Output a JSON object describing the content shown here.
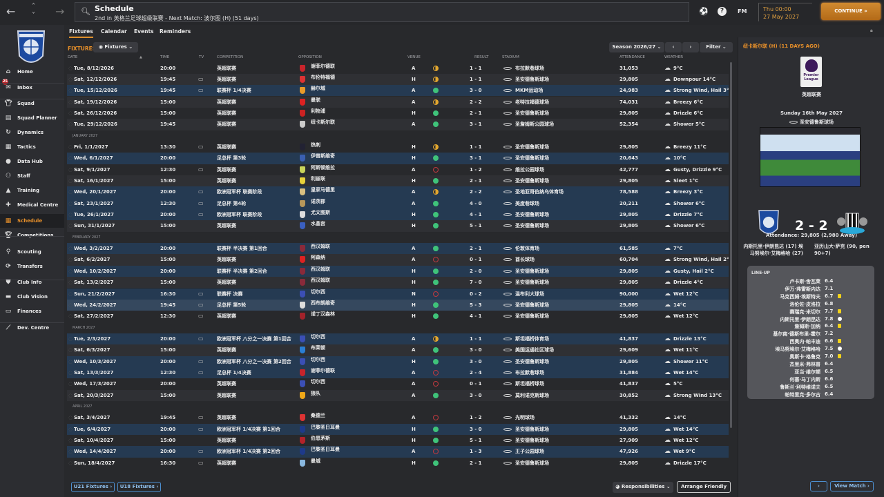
{
  "topbar": {
    "title": "Schedule",
    "subtitle": "2nd in 英格兰足球超级联赛 - Next Match: 波尔图 (H) (51 days)",
    "fm_label": "FM",
    "time": "Thu 00:00",
    "date": "27 May 2027",
    "continue_label": "CONTINUE »"
  },
  "sidebar": {
    "inbox_count": "25",
    "items": [
      {
        "label": "Home",
        "icon": "home-icon"
      },
      {
        "label": "Inbox",
        "icon": "inbox-icon"
      },
      {
        "label": "Squad",
        "icon": "shirt-icon"
      },
      {
        "label": "Squad Planner",
        "icon": "clipboard-icon"
      },
      {
        "label": "Dynamics",
        "icon": "dynamics-icon"
      },
      {
        "label": "Tactics",
        "icon": "tactics-icon"
      },
      {
        "label": "Data Hub",
        "icon": "data-hub-icon"
      },
      {
        "label": "Staff",
        "icon": "staff-icon"
      },
      {
        "label": "Training",
        "icon": "training-icon"
      },
      {
        "label": "Medical Centre",
        "icon": "medical-icon"
      },
      {
        "label": "Schedule",
        "icon": "calendar-icon"
      },
      {
        "label": "Competitions",
        "icon": "trophy-icon"
      },
      {
        "label": "Scouting",
        "icon": "magnifier-icon"
      },
      {
        "label": "Transfers",
        "icon": "transfers-icon"
      },
      {
        "label": "Club Info",
        "icon": "shield-icon"
      },
      {
        "label": "Club Vision",
        "icon": "briefcase-icon"
      },
      {
        "label": "Finances",
        "icon": "money-icon"
      },
      {
        "label": "Dev. Centre",
        "icon": "dev-centre-icon"
      }
    ]
  },
  "tabs": [
    "Fixtures",
    "Calendar",
    "Events",
    "Reminders"
  ],
  "fixtures": {
    "label": "FIXTURES",
    "view_label": "Fixtures",
    "season": "Season 2026/27",
    "filter": "Filter",
    "columns": [
      "DATE",
      "TIME",
      "TV",
      "COMPETITION",
      "OPPOSITION",
      "VENUE",
      "RESULT",
      "STADIUM",
      "ATTENDANCE",
      "WEATHER"
    ],
    "rows": [
      {
        "d": "Tue, 8/12/2026",
        "t": "20:00",
        "tv": false,
        "c": "英超联赛",
        "o": "谢菲尔德联",
        "v": "A",
        "oc": "D",
        "r": "1 - 1",
        "s": "布拉默巷球场",
        "a": "31,053",
        "w": "9°C",
        "bc": "#c8242b"
      },
      {
        "d": "Sat, 12/12/2026",
        "t": "19:45",
        "tv": true,
        "c": "英超联赛",
        "o": "布伦特福德",
        "v": "H",
        "oc": "D",
        "r": "1 - 1",
        "s": "圣安德鲁斯球场",
        "a": "29,805",
        "w": "Downpour 14°C",
        "bc": "#d33"
      },
      {
        "d": "Tue, 15/12/2026",
        "t": "19:45",
        "tv": true,
        "c": "联赛杯 1/4决赛",
        "o": "赫尔城",
        "v": "A",
        "oc": "W",
        "r": "3 - 0",
        "s": "MKM运动场",
        "a": "24,983",
        "w": "Strong Wind, Hail 3°C",
        "hl": 1,
        "bc": "#e89a2a"
      },
      {
        "d": "Sat, 19/12/2026",
        "t": "15:00",
        "tv": false,
        "c": "英超联赛",
        "o": "曼联",
        "v": "A",
        "oc": "D",
        "r": "2 - 2",
        "s": "老特拉福德球场",
        "a": "74,031",
        "w": "Breezy 6°C",
        "bc": "#d22"
      },
      {
        "d": "Sat, 26/12/2026",
        "t": "15:00",
        "tv": false,
        "c": "英超联赛",
        "o": "利物浦",
        "v": "H",
        "oc": "W",
        "r": "2 - 1",
        "s": "圣安德鲁斯球场",
        "a": "29,805",
        "w": "Drizzle 6°C",
        "bc": "#c22"
      },
      {
        "d": "Tue, 29/12/2026",
        "t": "19:45",
        "tv": false,
        "c": "英超联赛",
        "o": "纽卡斯尔联",
        "v": "A",
        "oc": "W",
        "r": "3 - 1",
        "s": "圣詹姆斯公园球场",
        "a": "52,354",
        "w": "Shower 5°C",
        "bc": "#ccc"
      },
      {
        "month": "JANUARY 2027"
      },
      {
        "d": "Fri, 1/1/2027",
        "t": "13:30",
        "tv": true,
        "c": "英超联赛",
        "o": "热刺",
        "v": "H",
        "oc": "D",
        "r": "1 - 1",
        "s": "圣安德鲁斯球场",
        "a": "29,805",
        "w": "Breezy 11°C",
        "bc": "#223"
      },
      {
        "d": "Wed, 6/1/2027",
        "t": "20:00",
        "tv": false,
        "c": "足总杯 第3轮",
        "o": "伊普斯维奇",
        "v": "H",
        "oc": "W",
        "r": "3 - 1",
        "s": "圣安德鲁斯球场",
        "a": "20,643",
        "w": "10°C",
        "hl": 1,
        "bc": "#3a5fb0"
      },
      {
        "d": "Sat, 9/1/2027",
        "t": "12:30",
        "tv": true,
        "c": "英超联赛",
        "o": "阿斯顿维拉",
        "v": "A",
        "oc": "L",
        "r": "1 - 2",
        "s": "维拉公园球场",
        "a": "42,777",
        "w": "Gusty, Drizzle 9°C",
        "bc": "#c9d45a"
      },
      {
        "d": "Sat, 16/1/2027",
        "t": "15:00",
        "tv": false,
        "c": "英超联赛",
        "o": "利兹联",
        "v": "H",
        "oc": "W",
        "r": "2 - 1",
        "s": "圣安德鲁斯球场",
        "a": "29,805",
        "w": "Sleet 1°C",
        "bc": "#e8d23a"
      },
      {
        "d": "Wed, 20/1/2027",
        "t": "20:00",
        "tv": true,
        "c": "欧洲冠军杯 联赛阶段",
        "o": "皇家马德里",
        "v": "A",
        "oc": "D",
        "r": "2 - 2",
        "s": "圣地亚哥伯纳乌体育场",
        "a": "78,588",
        "w": "Breezy 3°C",
        "hl": 1,
        "bc": "#d9c080"
      },
      {
        "d": "Sat, 23/1/2027",
        "t": "12:30",
        "tv": true,
        "c": "足总杯 第4轮",
        "o": "诺茨郡",
        "v": "A",
        "oc": "W",
        "r": "4 - 0",
        "s": "美度巷球场",
        "a": "20,211",
        "w": "Shower 6°C",
        "hl": 1,
        "bc": "#b9985a"
      },
      {
        "d": "Tue, 26/1/2027",
        "t": "20:00",
        "tv": true,
        "c": "欧洲冠军杯 联赛阶段",
        "o": "尤文图斯",
        "v": "H",
        "oc": "W",
        "r": "4 - 1",
        "s": "圣安德鲁斯球场",
        "a": "29,805",
        "w": "Drizzle 7°C",
        "hl": 1,
        "bc": "#ddd"
      },
      {
        "d": "Sun, 31/1/2027",
        "t": "15:00",
        "tv": false,
        "c": "英超联赛",
        "o": "水晶宫",
        "v": "H",
        "oc": "W",
        "r": "5 - 1",
        "s": "圣安德鲁斯球场",
        "a": "29,805",
        "w": "Shower 6°C",
        "bc": "#3a5fc0"
      },
      {
        "month": "FEBRUARY 2027"
      },
      {
        "d": "Wed, 3/2/2027",
        "t": "20:00",
        "tv": false,
        "c": "联赛杯 半决赛 第1回合",
        "o": "西汉姆联",
        "v": "A",
        "oc": "W",
        "r": "2 - 1",
        "s": "伦敦体育场",
        "a": "61,585",
        "w": "7°C",
        "hl": 1,
        "bc": "#8a2a3a"
      },
      {
        "d": "Sat, 6/2/2027",
        "t": "15:00",
        "tv": false,
        "c": "英超联赛",
        "o": "阿森纳",
        "v": "A",
        "oc": "L",
        "r": "0 - 1",
        "s": "酋长球场",
        "a": "60,704",
        "w": "Strong Wind, Hail 2°C",
        "bc": "#d22"
      },
      {
        "d": "Wed, 10/2/2027",
        "t": "20:00",
        "tv": false,
        "c": "联赛杯 半决赛 第2回合",
        "o": "西汉姆联",
        "v": "H",
        "oc": "W",
        "r": "2 - 0",
        "s": "圣安德鲁斯球场",
        "a": "29,805",
        "w": "Gusty, Hail 2°C",
        "hl": 1,
        "bc": "#8a2a3a"
      },
      {
        "d": "Sat, 13/2/2027",
        "t": "15:00",
        "tv": false,
        "c": "英超联赛",
        "o": "西汉姆联",
        "v": "H",
        "oc": "W",
        "r": "7 - 0",
        "s": "圣安德鲁斯球场",
        "a": "29,805",
        "w": "Drizzle 4°C",
        "bc": "#8a2a3a"
      },
      {
        "d": "Sun, 21/2/2027",
        "t": "16:30",
        "tv": true,
        "c": "联赛杯 决赛",
        "o": "切尔西",
        "v": "N",
        "oc": "L",
        "r": "0 - 2",
        "s": "温布利大球场",
        "a": "90,000",
        "w": "Wet 12°C",
        "hl": 1,
        "bc": "#3b4fb5"
      },
      {
        "d": "Wed, 24/2/2027",
        "t": "19:45",
        "tv": true,
        "c": "足总杯 第5轮",
        "o": "西布朗维奇",
        "v": "H",
        "oc": "W",
        "r": "5 - 3",
        "s": "圣安德鲁斯球场",
        "a": "29,805",
        "w": "14°C",
        "hl": 2,
        "bc": "#ddd"
      },
      {
        "d": "Sat, 27/2/2027",
        "t": "12:30",
        "tv": true,
        "c": "英超联赛",
        "o": "诺丁汉森林",
        "v": "H",
        "oc": "W",
        "r": "4 - 1",
        "s": "圣安德鲁斯球场",
        "a": "29,805",
        "w": "Wet 12°C",
        "bc": "#a2222a"
      },
      {
        "month": "MARCH 2027"
      },
      {
        "d": "Tue, 2/3/2027",
        "t": "20:00",
        "tv": true,
        "c": "欧洲冠军杯 八分之一决赛 第1回合",
        "o": "切尔西",
        "v": "A",
        "oc": "D",
        "r": "1 - 1",
        "s": "斯坦福桥体育场",
        "a": "41,837",
        "w": "Drizzle 13°C",
        "hl": 1,
        "bc": "#3b4fb5"
      },
      {
        "d": "Sat, 6/3/2027",
        "t": "15:00",
        "tv": false,
        "c": "英超联赛",
        "o": "布莱顿",
        "v": "A",
        "oc": "W",
        "r": "3 - 0",
        "s": "美国运通社区球场",
        "a": "29,609",
        "w": "Wet 11°C",
        "bc": "#2a7fd4"
      },
      {
        "d": "Wed, 10/3/2027",
        "t": "20:00",
        "tv": true,
        "c": "欧洲冠军杯 八分之一决赛 第2回合",
        "o": "切尔西",
        "v": "H",
        "oc": "W",
        "r": "3 - 0",
        "s": "圣安德鲁斯球场",
        "a": "29,805",
        "w": "Shower 11°C",
        "hl": 1,
        "bc": "#3b4fb5"
      },
      {
        "d": "Sat, 13/3/2027",
        "t": "12:30",
        "tv": true,
        "c": "足总杯 1/4决赛",
        "o": "谢菲尔德联",
        "v": "A",
        "oc": "L",
        "r": "2 - 4",
        "s": "布拉默巷球场",
        "a": "31,884",
        "w": "Wet 14°C",
        "hl": 1,
        "bc": "#c8242b"
      },
      {
        "d": "Wed, 17/3/2027",
        "t": "20:00",
        "tv": false,
        "c": "英超联赛",
        "o": "切尔西",
        "v": "A",
        "oc": "L",
        "r": "0 - 1",
        "s": "斯坦福桥球场",
        "a": "41,837",
        "w": "5°C",
        "bc": "#3b4fb5"
      },
      {
        "d": "Sat, 20/3/2027",
        "t": "15:00",
        "tv": false,
        "c": "英超联赛",
        "o": "狼队",
        "v": "A",
        "oc": "W",
        "r": "3 - 0",
        "s": "莫利诺克斯球场",
        "a": "30,852",
        "w": "Strong Wind 13°C",
        "bc": "#f0a818"
      },
      {
        "month": "APRIL 2027"
      },
      {
        "d": "Sat, 3/4/2027",
        "t": "19:45",
        "tv": true,
        "c": "英超联赛",
        "o": "桑德兰",
        "v": "A",
        "oc": "L",
        "r": "1 - 2",
        "s": "光明球场",
        "a": "41,332",
        "w": "14°C",
        "bc": "#d33"
      },
      {
        "d": "Tue, 6/4/2027",
        "t": "20:00",
        "tv": true,
        "c": "欧洲冠军杯 1/4决赛 第1回合",
        "o": "巴黎圣日耳曼",
        "v": "H",
        "oc": "W",
        "r": "3 - 0",
        "s": "圣安德鲁斯球场",
        "a": "29,805",
        "w": "Wet 14°C",
        "hl": 1,
        "bc": "#1e3a8a"
      },
      {
        "d": "Sat, 10/4/2027",
        "t": "15:00",
        "tv": false,
        "c": "英超联赛",
        "o": "伯恩茅斯",
        "v": "H",
        "oc": "W",
        "r": "5 - 1",
        "s": "圣安德鲁斯球场",
        "a": "27,909",
        "w": "Wet 12°C",
        "bc": "#b3222a"
      },
      {
        "d": "Wed, 14/4/2027",
        "t": "20:00",
        "tv": true,
        "c": "欧洲冠军杯 1/4决赛 第2回合",
        "o": "巴黎圣日耳曼",
        "v": "A",
        "oc": "L",
        "r": "1 - 3",
        "s": "王子公园球场",
        "a": "47,926",
        "w": "Wet 9°C",
        "hl": 1,
        "bc": "#1e3a8a"
      },
      {
        "d": "Sun, 18/4/2027",
        "t": "16:30",
        "tv": true,
        "c": "英超联赛",
        "o": "曼城",
        "v": "H",
        "oc": "W",
        "r": "2 - 1",
        "s": "圣安德鲁斯球场",
        "a": "29,805",
        "w": "Drizzle 17°C",
        "bc": "#8ab8e0"
      }
    ]
  },
  "bottom": {
    "u21": "U21 Fixtures ›",
    "u18": "U18 Fixtures ›",
    "responsibilities": "Responsibilities",
    "arrange": "Arrange Friendly",
    "next": "›",
    "view_match": "View Match ›"
  },
  "last_match": {
    "header": "纽卡斯尔联 (H) (11 DAYS AGO)",
    "league_logo_text": "Premier League",
    "competition": "英超联赛",
    "date": "Sunday 16th May 2027",
    "stadium": "圣安德鲁斯球场",
    "attendance": "Attendance: 29,805 (2,980 Away)",
    "score": "2 - 2",
    "home_scorers": "内斯托里·伊朗昆达 (17) 埃马努埃尔·艾梅格哈 (27)",
    "away_scorers": "亚历山大·萨克 (90, pen 90+7)",
    "lineup_title": "LINE-UP",
    "lineup": [
      {
        "n": "卢卡斯·舍瓦莱",
        "r": "6.4"
      },
      {
        "n": "伊万·弗雷斯内达",
        "r": "7.1"
      },
      {
        "n": "马克西姆·埃斯特夫",
        "r": "6.7",
        "e": "yellow-card"
      },
      {
        "n": "洛伦佐·皮洛拉",
        "r": "6.8"
      },
      {
        "n": "赛瑞克·米切尔",
        "r": "7.7",
        "e": "yellow-card"
      },
      {
        "n": "内斯托里·伊朗昆达",
        "r": "7.8",
        "e": "goal"
      },
      {
        "n": "詹姆斯·加纳",
        "r": "6.4",
        "e": "yellow-card"
      },
      {
        "n": "基尔南·德斯布里-霍尔",
        "r": "7.2"
      },
      {
        "n": "西奥内·帕丰迪",
        "r": "6.6",
        "e": "yellow-card"
      },
      {
        "n": "埃马努埃尔·艾梅格哈",
        "r": "7.5",
        "e": "goal"
      },
      {
        "n": "奥斯卡·格鲁克",
        "r": "7.0",
        "e": "yellow-card"
      },
      {
        "n": "杰里米·弗林普",
        "r": "6.4"
      },
      {
        "n": "亚当·维尔顿",
        "r": "6.5"
      },
      {
        "n": "何塞·马丁内斯",
        "r": "6.6"
      },
      {
        "n": "鲁斯兰·利特维诺夫",
        "r": "6.5"
      },
      {
        "n": "帕特里克·多尔古",
        "r": "6.4"
      }
    ]
  }
}
